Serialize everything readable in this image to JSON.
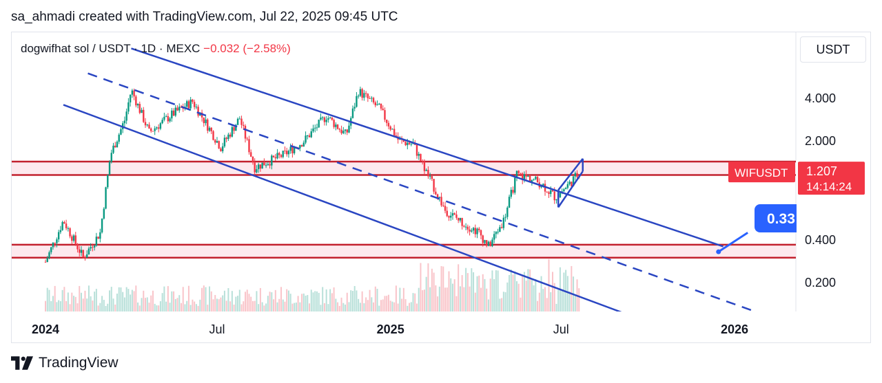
{
  "header": {
    "attribution": "sa_ahmadi created with TradingView.com, Jul 22, 2025 09:45 UTC"
  },
  "symbol_bar": {
    "symbol": "dogwifhat sol / USDT · 1D · MEXC",
    "change": "−0.032 (−2.58%)"
  },
  "price_scale": {
    "unit": "USDT"
  },
  "ticker_tag": {
    "label": "WIFUSDT",
    "price": "1.207",
    "countdown": "14:14:24"
  },
  "target_bubble": {
    "label": "0.33"
  },
  "footer": {
    "brand": "TradingView"
  },
  "colors": {
    "line": "#2a46c2",
    "zone": "#c2202d",
    "zone_fill": "#fde9ee",
    "up": "#089981",
    "down": "#f23645",
    "tag": "#f23645",
    "bubble": "#2962ff"
  },
  "chart_data": {
    "type": "candlestick",
    "y_scale": "log",
    "y_ticks": [
      4.0,
      2.0,
      0.4,
      0.2
    ],
    "y_tick_labels": [
      "4.000",
      "2.000",
      "0.400",
      "0.200"
    ],
    "x_ticks": [
      "2024",
      "Jul",
      "2025",
      "Jul",
      "2026"
    ],
    "x_ticks_bold": [
      true,
      false,
      true,
      false,
      true
    ],
    "last_price": 1.207,
    "target": 0.33,
    "price_path": [
      {
        "date": "2024-01-01",
        "price": 0.28
      },
      {
        "date": "2024-01-20",
        "price": 0.55
      },
      {
        "date": "2024-02-10",
        "price": 0.3
      },
      {
        "date": "2024-02-28",
        "price": 0.45
      },
      {
        "date": "2024-03-10",
        "price": 1.6
      },
      {
        "date": "2024-03-25",
        "price": 2.8
      },
      {
        "date": "2024-04-01",
        "price": 4.6
      },
      {
        "date": "2024-04-20",
        "price": 2.3
      },
      {
        "date": "2024-05-15",
        "price": 3.1
      },
      {
        "date": "2024-06-05",
        "price": 3.8
      },
      {
        "date": "2024-07-05",
        "price": 1.8
      },
      {
        "date": "2024-07-25",
        "price": 2.9
      },
      {
        "date": "2024-08-10",
        "price": 1.3
      },
      {
        "date": "2024-09-10",
        "price": 1.6
      },
      {
        "date": "2024-10-01",
        "price": 2.0
      },
      {
        "date": "2024-10-25",
        "price": 3.0
      },
      {
        "date": "2024-11-15",
        "price": 2.2
      },
      {
        "date": "2024-11-28",
        "price": 4.5
      },
      {
        "date": "2024-12-20",
        "price": 3.4
      },
      {
        "date": "2025-01-10",
        "price": 2.0
      },
      {
        "date": "2025-01-25",
        "price": 1.9
      },
      {
        "date": "2025-02-08",
        "price": 1.2
      },
      {
        "date": "2025-02-28",
        "price": 0.65
      },
      {
        "date": "2025-03-15",
        "price": 0.55
      },
      {
        "date": "2025-04-05",
        "price": 0.45
      },
      {
        "date": "2025-04-15",
        "price": 0.36
      },
      {
        "date": "2025-05-01",
        "price": 0.55
      },
      {
        "date": "2025-05-15",
        "price": 1.15
      },
      {
        "date": "2025-05-28",
        "price": 1.1
      },
      {
        "date": "2025-06-10",
        "price": 1.0
      },
      {
        "date": "2025-06-25",
        "price": 0.8
      },
      {
        "date": "2025-07-10",
        "price": 1.0
      },
      {
        "date": "2025-07-21",
        "price": 1.207
      }
    ],
    "support_zones": [
      {
        "low": 1.15,
        "high": 1.43
      },
      {
        "low": 0.3,
        "high": 0.37
      }
    ],
    "trendlines": [
      {
        "name": "channel-upper",
        "style": "solid",
        "from": {
          "date": "2024-04-01",
          "price": 9.0
        },
        "to": {
          "date": "2025-12-20",
          "price": 0.36
        }
      },
      {
        "name": "channel-mid",
        "style": "dashed",
        "from": {
          "date": "2024-02-15",
          "price": 6.0
        },
        "to": {
          "date": "2026-02-15",
          "price": 0.11
        }
      },
      {
        "name": "channel-lower",
        "style": "solid",
        "from": {
          "date": "2024-01-20",
          "price": 3.6
        },
        "to": {
          "date": "2025-10-10",
          "price": 0.1
        }
      },
      {
        "name": "flag-upper",
        "style": "solid",
        "from": {
          "date": "2025-06-28",
          "price": 0.9
        },
        "to": {
          "date": "2025-07-24",
          "price": 1.5
        }
      },
      {
        "name": "flag-lower",
        "style": "solid",
        "from": {
          "date": "2025-06-28",
          "price": 0.68
        },
        "to": {
          "date": "2025-07-24",
          "price": 1.22
        }
      },
      {
        "name": "projection",
        "style": "solid",
        "from": {
          "date": "2025-12-15",
          "price": 0.33
        },
        "to": {
          "date": "2026-01-15",
          "price": 0.45
        }
      }
    ]
  }
}
